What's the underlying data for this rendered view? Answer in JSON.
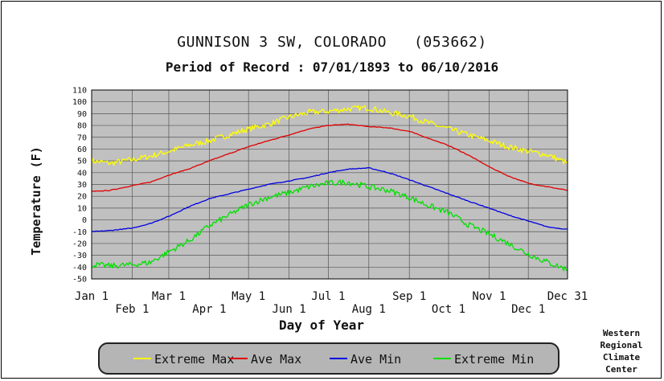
{
  "chart_data": {
    "type": "line",
    "title": "GUNNISON 3 SW, COLORADO   (053662)",
    "subtitle": "Period of Record : 07/01/1893 to 06/10/2016",
    "xlabel": "Day of Year",
    "ylabel": "Temperature (F)",
    "xlim": [
      1,
      365
    ],
    "ylim": [
      -50,
      110
    ],
    "grid": true,
    "background_color": "#c0c0c0",
    "yticks": [
      110,
      100,
      90,
      80,
      70,
      60,
      50,
      40,
      30,
      20,
      10,
      0,
      -10,
      -20,
      -30,
      -40,
      -50
    ],
    "xticks": [
      {
        "day": 1,
        "label": "Jan 1",
        "row": 0
      },
      {
        "day": 32,
        "label": "Feb 1",
        "row": 1
      },
      {
        "day": 60,
        "label": "Mar 1",
        "row": 0
      },
      {
        "day": 91,
        "label": "Apr 1",
        "row": 1
      },
      {
        "day": 121,
        "label": "May 1",
        "row": 0
      },
      {
        "day": 152,
        "label": "Jun 1",
        "row": 1
      },
      {
        "day": 182,
        "label": "Jul 1",
        "row": 0
      },
      {
        "day": 213,
        "label": "Aug 1",
        "row": 1
      },
      {
        "day": 244,
        "label": "Sep 1",
        "row": 0
      },
      {
        "day": 274,
        "label": "Oct 1",
        "row": 1
      },
      {
        "day": 305,
        "label": "Nov 1",
        "row": 0
      },
      {
        "day": 335,
        "label": "Dec 1",
        "row": 1
      },
      {
        "day": 365,
        "label": "Dec 31",
        "row": 0
      }
    ],
    "x": [
      1,
      15,
      32,
      46,
      60,
      75,
      91,
      106,
      121,
      136,
      152,
      167,
      182,
      197,
      213,
      228,
      244,
      259,
      274,
      289,
      305,
      320,
      335,
      350,
      365
    ],
    "series": [
      {
        "name": "Extreme Max",
        "color": "#ffff00",
        "values": [
          50,
          48,
          51,
          54,
          58,
          63,
          67,
          72,
          77,
          81,
          87,
          91,
          92,
          94,
          95,
          91,
          88,
          82,
          77,
          72,
          67,
          62,
          58,
          55,
          48
        ]
      },
      {
        "name": "Ave Max",
        "color": "#e00000",
        "values": [
          24,
          25,
          29,
          32,
          38,
          43,
          50,
          56,
          62,
          67,
          72,
          77,
          80,
          81,
          79,
          78,
          75,
          69,
          63,
          55,
          45,
          37,
          31,
          28,
          25
        ]
      },
      {
        "name": "Ave Min",
        "color": "#0000e0",
        "values": [
          -10,
          -9,
          -7,
          -3,
          3,
          11,
          18,
          22,
          26,
          30,
          33,
          36,
          40,
          43,
          44,
          40,
          34,
          28,
          22,
          16,
          10,
          4,
          -1,
          -6,
          -8
        ]
      },
      {
        "name": "Extreme Min",
        "color": "#00e000",
        "values": [
          -38,
          -39,
          -38,
          -36,
          -27,
          -18,
          -5,
          4,
          13,
          19,
          23,
          28,
          31,
          32,
          28,
          25,
          19,
          12,
          6,
          -4,
          -12,
          -20,
          -29,
          -36,
          -42
        ]
      }
    ]
  },
  "credit": {
    "line1": "Western",
    "line2": "Regional",
    "line3": "Climate",
    "line4": "Center"
  }
}
